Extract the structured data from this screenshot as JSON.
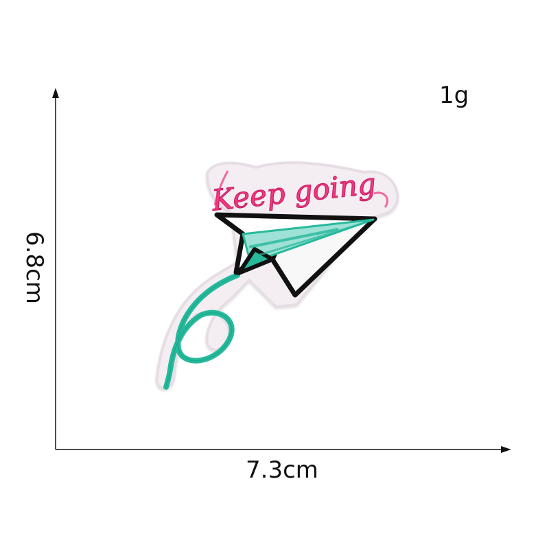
{
  "product_image": {
    "weight": "1g",
    "width": "7.3cm",
    "height": "6.8cm",
    "patch_text": "Keep going",
    "colors": {
      "axis": "#111111",
      "felt": "#f4eef2",
      "pink": "#f2387f",
      "teal": "#26b99b",
      "mint": "#9fe1d6",
      "plane_outline": "#111111"
    },
    "icon": "paper-airplane-icon"
  }
}
